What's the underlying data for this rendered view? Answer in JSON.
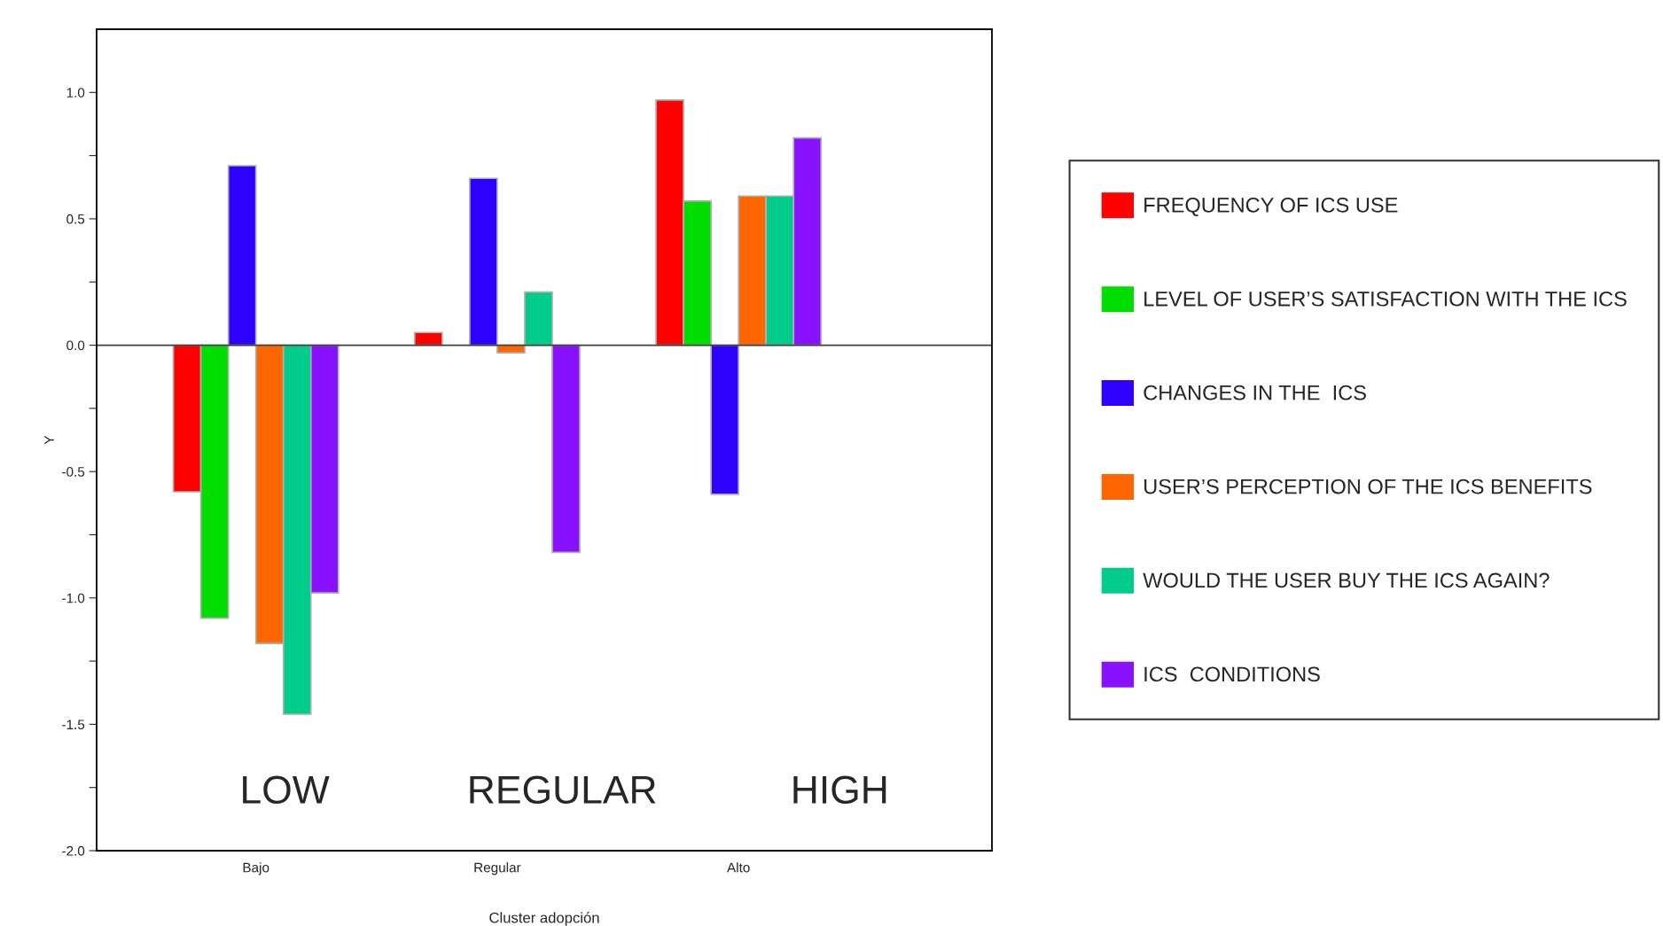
{
  "chart_data": {
    "type": "bar",
    "xlabel": "Cluster adopción",
    "ylabel": "Y",
    "categories": [
      "Bajo",
      "Regular",
      "Alto"
    ],
    "series": [
      {
        "name": "FREQUENCY OF ICS USE",
        "color": "#ff0000",
        "values": [
          -0.58,
          0.05,
          0.97
        ]
      },
      {
        "name": "LEVEL OF USER’S SATISFACTION WITH THE ICS",
        "color": "#00dd00",
        "values": [
          -1.08,
          null,
          0.57
        ]
      },
      {
        "name": "CHANGES IN THE  ICS",
        "color": "#2d00ff",
        "values": [
          0.71,
          0.66,
          -0.59
        ]
      },
      {
        "name": "USER’S PERCEPTION OF THE ICS BENEFITS",
        "color": "#ff6600",
        "values": [
          -1.18,
          -0.03,
          0.59
        ]
      },
      {
        "name": "WOULD THE USER BUY THE ICS AGAIN?",
        "color": "#00cc8c",
        "values": [
          -1.46,
          0.21,
          0.59
        ]
      },
      {
        "name": "ICS  CONDITIONS",
        "color": "#8811ff",
        "values": [
          -0.98,
          -0.82,
          0.82
        ]
      }
    ],
    "ylim": [
      -2.0,
      1.25
    ],
    "yticks": [
      {
        "value": -2.0,
        "label": "-2.0"
      },
      {
        "value": -1.75,
        "label": null
      },
      -1.5,
      {
        "value": -1.25,
        "label": null
      },
      {
        "value": -1.0,
        "label": "-1.0"
      },
      {
        "value": -0.75,
        "label": null
      },
      -0.5,
      {
        "value": -0.25,
        "label": null
      },
      {
        "value": 0.0,
        "label": "0.0"
      },
      {
        "value": 0.25,
        "label": null
      },
      0.5,
      {
        "value": 0.75,
        "label": null
      },
      {
        "value": 1.0,
        "label": "1.0"
      }
    ],
    "ref_lines": [
      {
        "axis": "y",
        "value": 0,
        "color": "#404040"
      }
    ],
    "annotations": [
      "LOW",
      "REGULAR",
      "HIGH"
    ],
    "grid": false,
    "legend": "right"
  }
}
